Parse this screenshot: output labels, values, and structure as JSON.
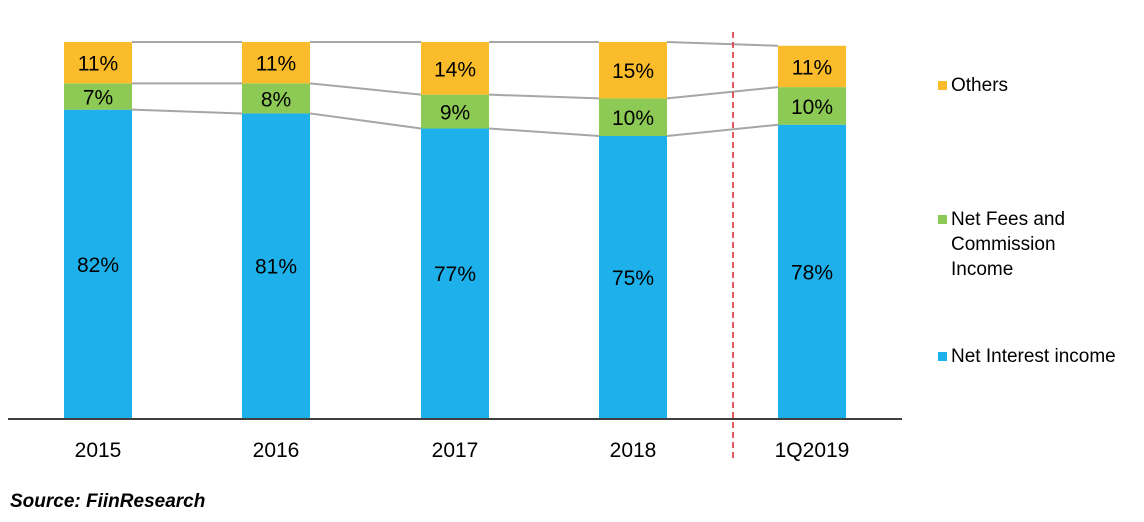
{
  "chart_data": {
    "type": "bar",
    "stacked": true,
    "normalized": true,
    "categories": [
      "2015",
      "2016",
      "2017",
      "2018",
      "1Q2019"
    ],
    "series": [
      {
        "name": "Net Interest income",
        "values": [
          82,
          81,
          77,
          75,
          78
        ],
        "labels": [
          "82%",
          "81%",
          "77%",
          "75%",
          "78%"
        ]
      },
      {
        "name": "Net Fees and\nCommission\nIncome",
        "values": [
          7,
          8,
          9,
          10,
          10
        ],
        "labels": [
          "7%",
          "8%",
          "9%",
          "10%",
          "10%"
        ]
      },
      {
        "name": "Others",
        "values": [
          11,
          11,
          14,
          15,
          11
        ],
        "labels": [
          "11%",
          "11%",
          "14%",
          "15%",
          "11%"
        ]
      }
    ],
    "ylim": [
      0,
      100
    ],
    "connector_lines": true,
    "separator_before": "1Q2019",
    "legend_position": "right",
    "grid": false
  },
  "colors": {
    "Net Interest income": "#1EB0EA",
    "Net Fees and Commission Income": "#8DCA55",
    "Others": "#FBBC2B",
    "connector": "#A6A6A6",
    "separator": "#D9272E",
    "axis": "#000000"
  },
  "legend": {
    "others": "Others",
    "fees": "Net Fees and\nCommission\nIncome",
    "interest": "Net Interest income"
  },
  "source": "Source: FiinResearch"
}
